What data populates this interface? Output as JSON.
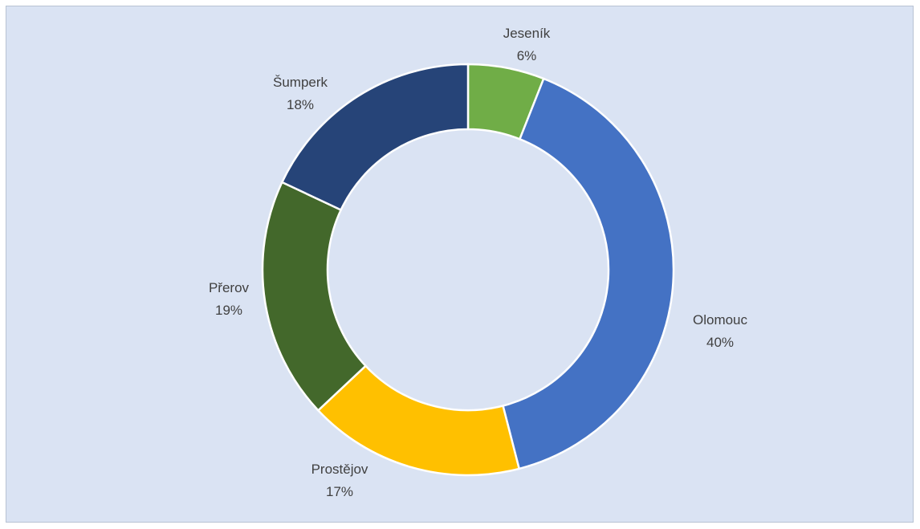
{
  "chart_data": {
    "type": "pie",
    "variant": "donut",
    "title": "",
    "categories": [
      "Jeseník",
      "Olomouc",
      "Prostějov",
      "Přerov",
      "Šumperk"
    ],
    "values": [
      6,
      40,
      17,
      19,
      18
    ],
    "value_labels": [
      "6%",
      "40%",
      "17%",
      "19%",
      "18%"
    ],
    "colors": [
      "#70ad47",
      "#4472c4",
      "#ffc000",
      "#43682b",
      "#264478"
    ],
    "legend": "none"
  }
}
